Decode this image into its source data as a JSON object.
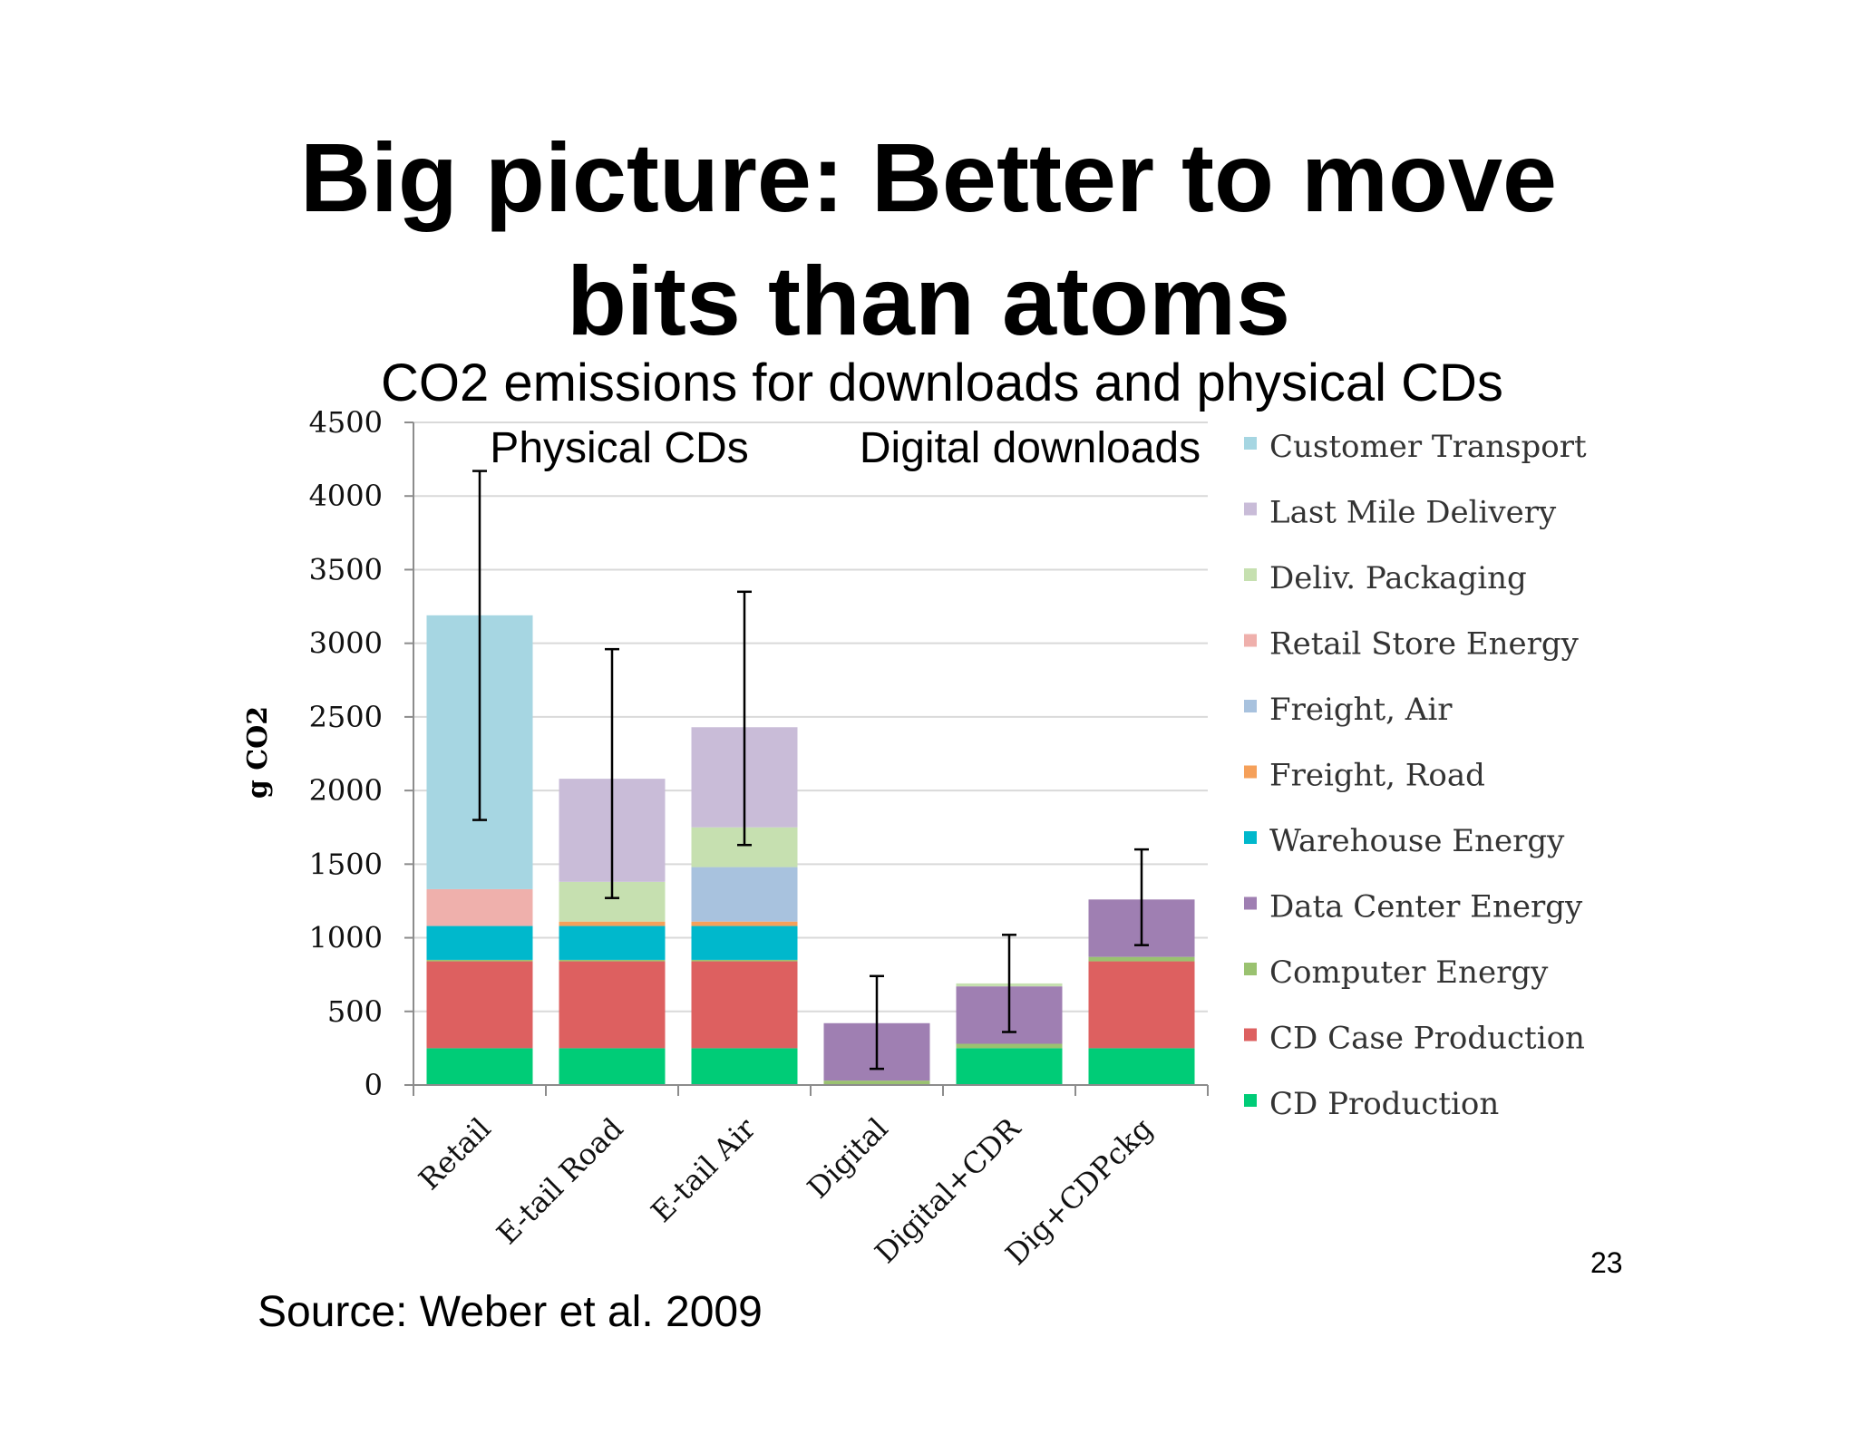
{
  "slide": {
    "title_line1": "Big picture: Better to move",
    "title_line2": "bits than atoms",
    "subtitle": "CO2 emissions for downloads and physical CDs",
    "source": "Source:  Weber et al. 2009",
    "page_number": "23"
  },
  "chart_data": {
    "type": "bar",
    "stacked": true,
    "ylabel": "g CO2",
    "ylim": [
      0,
      4500
    ],
    "yticks": [
      0,
      500,
      1000,
      1500,
      2000,
      2500,
      3000,
      3500,
      4000,
      4500
    ],
    "grid": true,
    "legend_position": "right",
    "group_labels": [
      {
        "text": "Physical CDs"
      },
      {
        "text": "Digital downloads"
      }
    ],
    "categories": [
      "Retail",
      "E-tail Road",
      "E-tail Air",
      "Digital",
      "Digital+CDR",
      "Dig+CDPckg"
    ],
    "series": [
      {
        "name": "CD Production",
        "color": "#00cc77",
        "values": [
          250,
          250,
          250,
          0,
          250,
          250
        ]
      },
      {
        "name": "CD Case Production",
        "color": "#dd6060",
        "values": [
          590,
          590,
          590,
          0,
          0,
          590
        ]
      },
      {
        "name": "Computer Energy",
        "color": "#9ac270",
        "values": [
          10,
          10,
          10,
          30,
          30,
          30
        ]
      },
      {
        "name": "Data Center Energy",
        "color": "#9f7fb2",
        "values": [
          0,
          0,
          0,
          390,
          390,
          390
        ]
      },
      {
        "name": "Warehouse Energy",
        "color": "#00b8cc",
        "values": [
          230,
          230,
          230,
          0,
          0,
          0
        ]
      },
      {
        "name": "Freight, Road",
        "color": "#f5a05a",
        "values": [
          0,
          30,
          30,
          0,
          0,
          0
        ]
      },
      {
        "name": "Freight, Air",
        "color": "#a8c2de",
        "values": [
          0,
          0,
          370,
          0,
          0,
          0
        ]
      },
      {
        "name": "Retail Store Energy",
        "color": "#efb0ac",
        "values": [
          250,
          0,
          0,
          0,
          0,
          0
        ]
      },
      {
        "name": "Deliv. Packaging",
        "color": "#c6e0b0",
        "values": [
          0,
          270,
          270,
          0,
          20,
          0
        ]
      },
      {
        "name": "Last Mile Delivery",
        "color": "#c9bcd8",
        "values": [
          0,
          700,
          680,
          0,
          0,
          0
        ]
      },
      {
        "name": "Customer Transport",
        "color": "#a6d6e2",
        "values": [
          1860,
          0,
          0,
          0,
          0,
          0
        ]
      }
    ],
    "error_bars": [
      {
        "low": 1800,
        "high": 4170
      },
      {
        "low": 1270,
        "high": 2960
      },
      {
        "low": 1630,
        "high": 3350
      },
      {
        "low": 110,
        "high": 740
      },
      {
        "low": 360,
        "high": 1020
      },
      {
        "low": 950,
        "high": 1600
      }
    ]
  }
}
